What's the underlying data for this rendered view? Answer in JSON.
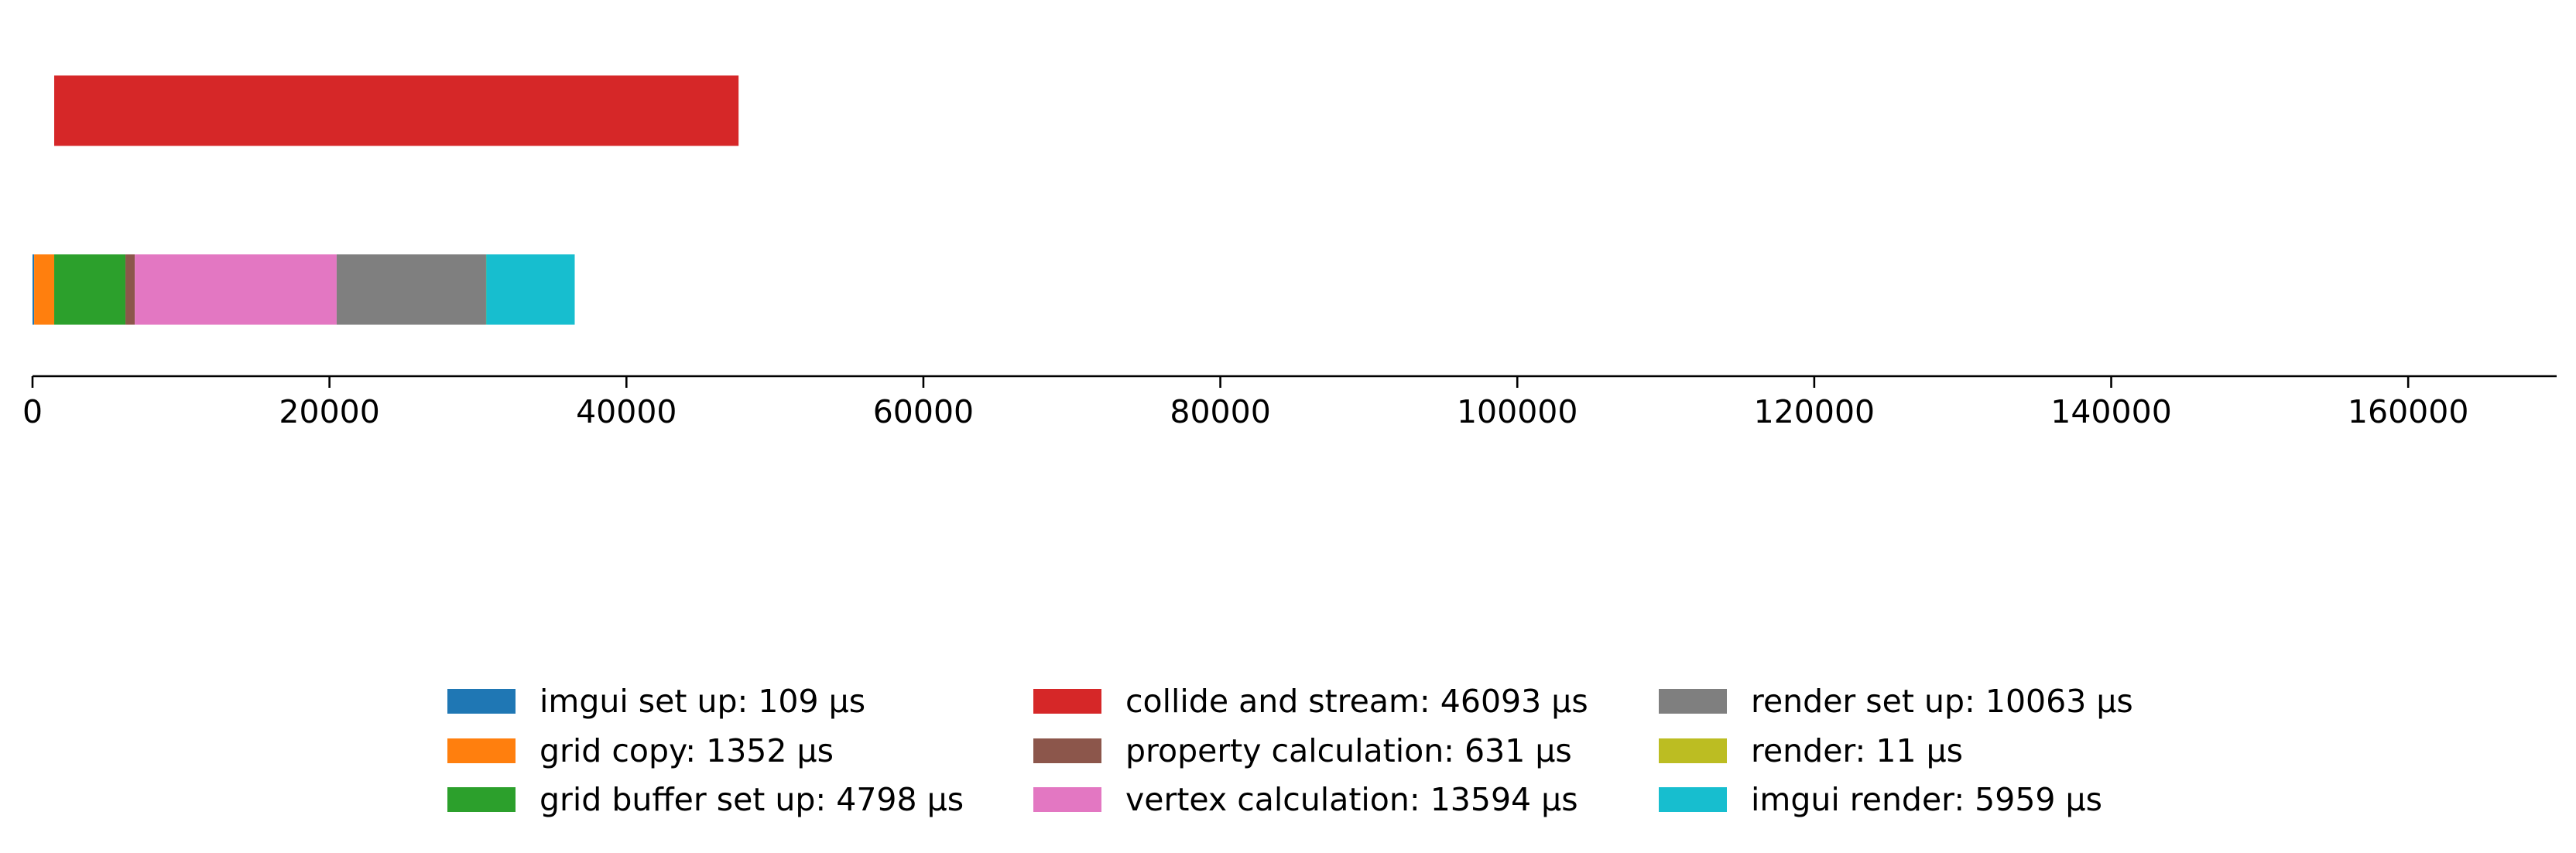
{
  "chart_data": {
    "type": "bar",
    "orientation": "horizontal",
    "stacked": true,
    "xlim": [
      0,
      170000
    ],
    "x_ticks": [
      "0",
      "20000",
      "40000",
      "60000",
      "80000",
      "100000",
      "120000",
      "140000",
      "160000"
    ],
    "x_tick_values": [
      0,
      20000,
      40000,
      60000,
      80000,
      100000,
      120000,
      140000,
      160000
    ],
    "grid": false,
    "legend_position": "bottom-center",
    "rows": [
      {
        "segments": [
          {
            "name": "collide and stream",
            "start": 1461,
            "value": 46093,
            "color": "#d62728"
          }
        ]
      },
      {
        "segments": [
          {
            "name": "imgui set up",
            "start": 0,
            "value": 109,
            "color": "#1f77b4"
          },
          {
            "name": "grid copy",
            "start": 109,
            "value": 1352,
            "color": "#ff7f0e"
          },
          {
            "name": "grid buffer set up",
            "start": 1461,
            "value": 4798,
            "color": "#2ca02c"
          },
          {
            "name": "property calculation",
            "start": 6259,
            "value": 631,
            "color": "#8c564b"
          },
          {
            "name": "vertex calculation",
            "start": 6890,
            "value": 13594,
            "color": "#e377c2"
          },
          {
            "name": "render set up",
            "start": 20484,
            "value": 10063,
            "color": "#7f7f7f"
          },
          {
            "name": "render",
            "start": 30547,
            "value": 11,
            "color": "#bcbd22"
          },
          {
            "name": "imgui render",
            "start": 30558,
            "value": 5959,
            "color": "#17becf"
          }
        ]
      }
    ],
    "legend": [
      {
        "label": "imgui set up: 109 µs",
        "color": "#1f77b4"
      },
      {
        "label": "grid copy: 1352 µs",
        "color": "#ff7f0e"
      },
      {
        "label": "grid buffer set up: 4798 µs",
        "color": "#2ca02c"
      },
      {
        "label": "collide and stream: 46093 µs",
        "color": "#d62728"
      },
      {
        "label": "property calculation: 631 µs",
        "color": "#8c564b"
      },
      {
        "label": "vertex calculation: 13594 µs",
        "color": "#e377c2"
      },
      {
        "label": "render set up: 10063 µs",
        "color": "#7f7f7f"
      },
      {
        "label": "render: 11 µs",
        "color": "#bcbd22"
      },
      {
        "label": "imgui render: 5959 µs",
        "color": "#17becf"
      }
    ]
  }
}
